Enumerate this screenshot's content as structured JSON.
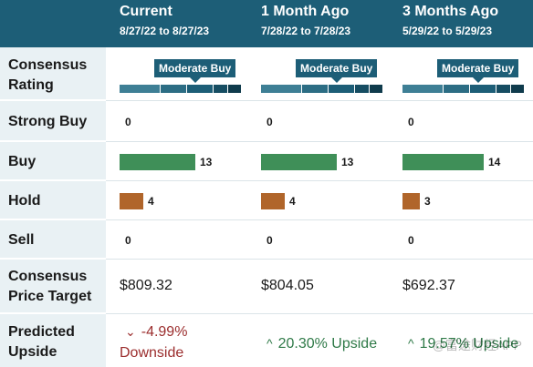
{
  "columns": [
    {
      "title": "Current",
      "range": "8/27/22 to 8/27/23"
    },
    {
      "title": "1 Month Ago",
      "range": "7/28/22 to 7/28/23"
    },
    {
      "title": "3 Months Ago",
      "range": "5/29/22 to 5/29/23"
    }
  ],
  "rows": {
    "consensus_rating": {
      "label_line1": "Consensus",
      "label_line2": "Rating",
      "values": [
        "Moderate Buy",
        "Moderate Buy",
        "Moderate Buy"
      ]
    },
    "strong_buy": {
      "label": "Strong Buy",
      "values": [
        "0",
        "0",
        "0"
      ]
    },
    "buy": {
      "label": "Buy",
      "values": [
        "13",
        "13",
        "14"
      ]
    },
    "hold": {
      "label": "Hold",
      "values": [
        "4",
        "4",
        "3"
      ]
    },
    "sell": {
      "label": "Sell",
      "values": [
        "0",
        "0",
        "0"
      ]
    },
    "price_target": {
      "label_line1": "Consensus",
      "label_line2": "Price Target",
      "values": [
        "$809.32",
        "$804.05",
        "$692.37"
      ]
    },
    "predicted_upside": {
      "label_line1": "Predicted",
      "label_line2": "Upside",
      "values": [
        {
          "line1": "-4.99%",
          "line2": "Downside",
          "direction": "down"
        },
        {
          "text": "20.30% Upside",
          "direction": "up"
        },
        {
          "text": "19.57% Upside",
          "direction": "up"
        }
      ]
    }
  },
  "colors": {
    "header": "#1d5e77",
    "label_bg": "#e9f1f4",
    "buy": "#3f8f58",
    "hold": "#b0652a",
    "downside": "#9b2d2d",
    "upside": "#2f7a48"
  },
  "icons": {
    "down": "chevron-down-icon",
    "up": "chevron-up-icon"
  },
  "watermark": "@富途财经APP"
}
